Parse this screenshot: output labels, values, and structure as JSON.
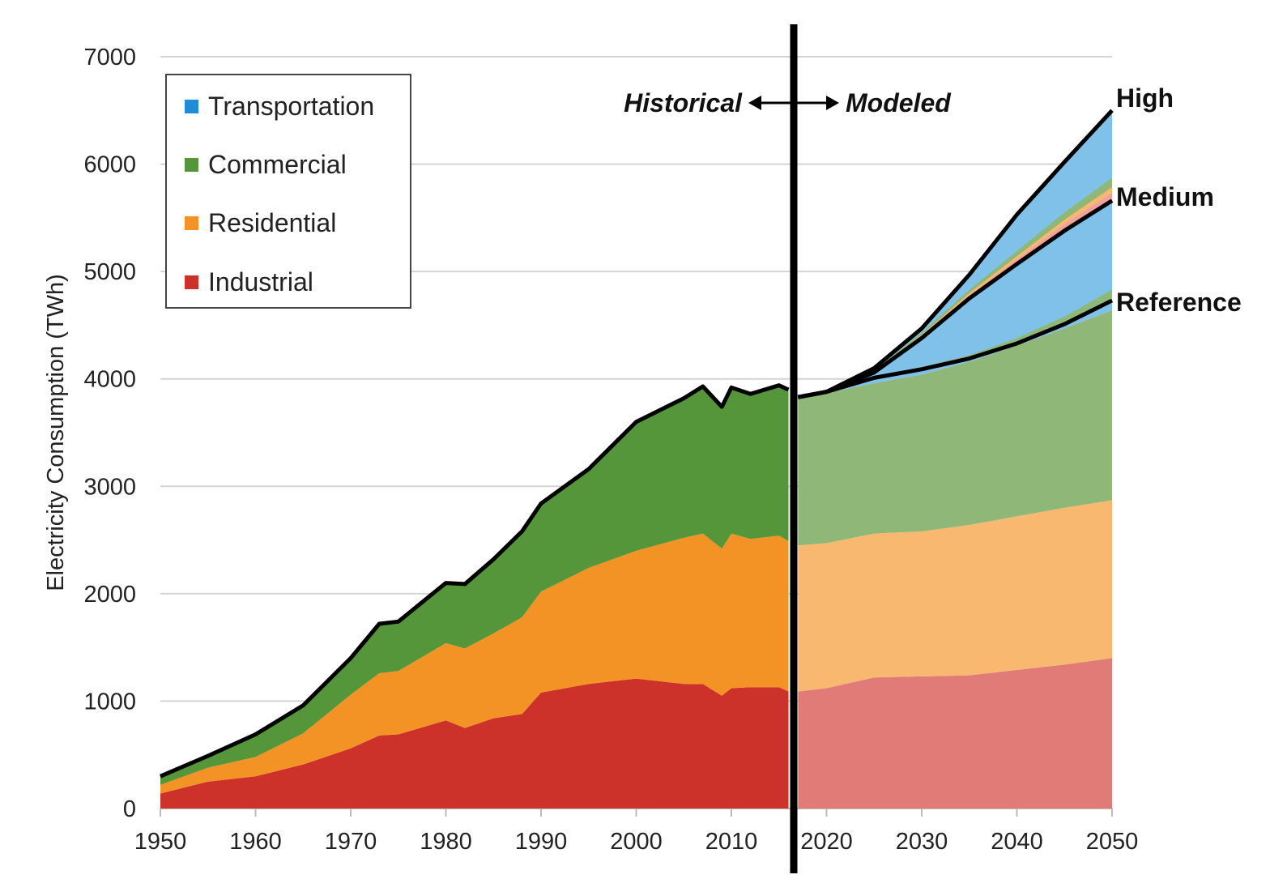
{
  "chart_data": {
    "type": "area",
    "title": "",
    "xlabel": "",
    "ylabel": "Electricity Consumption (TWh)",
    "xlim": [
      1950,
      2050
    ],
    "ylim": [
      0,
      7000
    ],
    "xticks": [
      "1950",
      "1960",
      "1970",
      "1980",
      "1990",
      "2000",
      "2010",
      "2020",
      "2030",
      "2040",
      "2050"
    ],
    "yticks": [
      "0",
      "1000",
      "2000",
      "3000",
      "4000",
      "5000",
      "6000",
      "7000"
    ],
    "grid": "horizontal",
    "legend_position": "top-left",
    "legend": [
      "Transportation",
      "Commercial",
      "Residential",
      "Industrial"
    ],
    "colors": {
      "Transportation": "#1f8dd6",
      "Commercial": "#55963a",
      "Residential": "#f39325",
      "Industrial": "#cc3229",
      "Transportation_modeled": "#7fc1e8",
      "Commercial_modeled": "#8fb878",
      "Residential_modeled": "#f8b870",
      "Industrial_modeled": "#e07b77"
    },
    "divider_year": 2016.5,
    "annotations": {
      "historical": "Historical",
      "modeled": "Modeled"
    },
    "historical": {
      "x": [
        1950,
        1955,
        1960,
        1965,
        1970,
        1973,
        1975,
        1980,
        1982,
        1985,
        1988,
        1990,
        1995,
        2000,
        2005,
        2007,
        2009,
        2010,
        2012,
        2015,
        2016
      ],
      "Industrial": [
        140,
        250,
        300,
        410,
        560,
        680,
        690,
        820,
        750,
        840,
        880,
        1080,
        1160,
        1210,
        1160,
        1160,
        1050,
        1120,
        1130,
        1130,
        1090
      ],
      "Residential": [
        80,
        130,
        180,
        290,
        500,
        580,
        590,
        720,
        740,
        790,
        900,
        940,
        1080,
        1190,
        1360,
        1400,
        1370,
        1440,
        1380,
        1410,
        1400
      ],
      "Commercial": [
        80,
        110,
        210,
        260,
        340,
        460,
        460,
        560,
        600,
        690,
        800,
        820,
        920,
        1200,
        1300,
        1370,
        1320,
        1360,
        1350,
        1400,
        1410
      ],
      "Total": [
        300,
        490,
        690,
        960,
        1400,
        1720,
        1740,
        2100,
        2090,
        2320,
        2580,
        2840,
        3160,
        3600,
        3820,
        3930,
        3740,
        3920,
        3860,
        3940,
        3900
      ]
    },
    "modeled": {
      "x": [
        2017,
        2020,
        2025,
        2030,
        2035,
        2040,
        2045,
        2050
      ],
      "Industrial": [
        1090,
        1120,
        1220,
        1230,
        1240,
        1290,
        1340,
        1400
      ],
      "Residential": [
        1360,
        1350,
        1340,
        1350,
        1400,
        1430,
        1460,
        1470
      ],
      "Commercial": [
        1370,
        1400,
        1400,
        1460,
        1520,
        1590,
        1670,
        1770
      ],
      "scenarios": [
        {
          "name": "Reference",
          "total": [
            3830,
            3880,
            4010,
            4090,
            4190,
            4330,
            4510,
            4730
          ],
          "band_top": [
            3830,
            3880,
            4020,
            4110,
            4220,
            4380,
            4580,
            4830
          ]
        },
        {
          "name": "Medium",
          "total": [
            3830,
            3880,
            4060,
            4380,
            4750,
            5070,
            5380,
            5660
          ],
          "band_top": [
            3830,
            3885,
            4080,
            4430,
            4830,
            5190,
            5550,
            5870
          ]
        },
        {
          "name": "High",
          "total": [
            3830,
            3880,
            4100,
            4470,
            4970,
            5530,
            6020,
            6500
          ]
        }
      ]
    }
  }
}
